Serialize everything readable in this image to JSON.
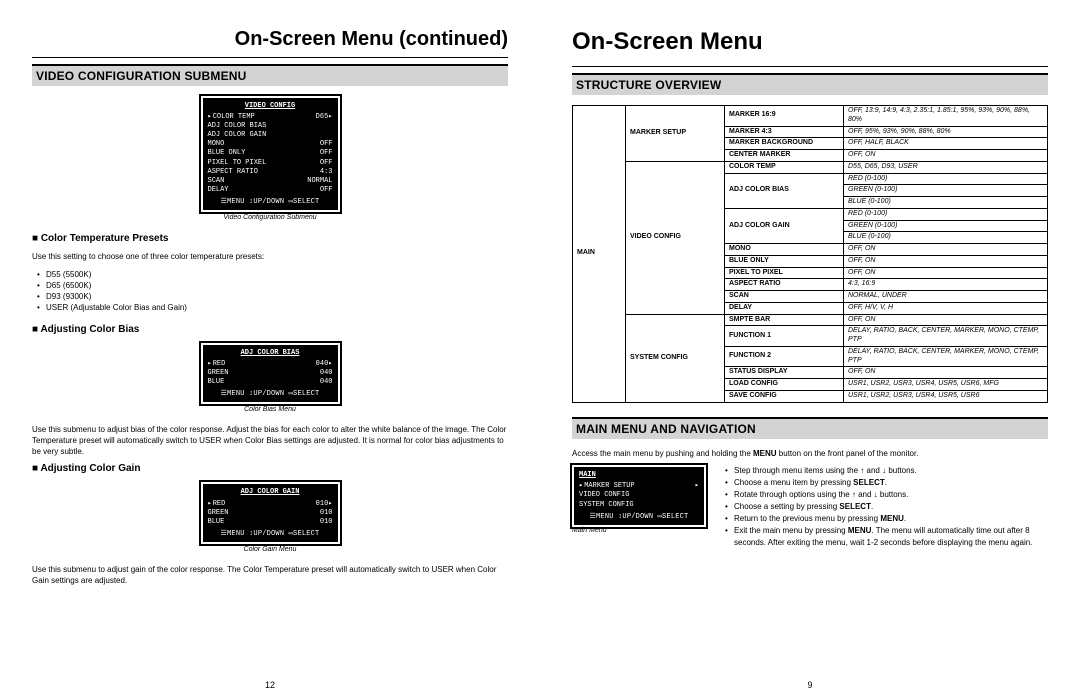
{
  "left": {
    "page_title": "On-Screen Menu (continued)",
    "section": "VIDEO CONFIGURATION SUBMENU",
    "pagenum": "12",
    "screen1": {
      "title": "VIDEO CONFIG",
      "rows": [
        [
          "COLOR TEMP",
          "D65"
        ],
        [
          "ADJ COLOR BIAS",
          ""
        ],
        [
          "ADJ COLOR GAIN",
          ""
        ],
        [
          "MONO",
          "OFF"
        ],
        [
          "BLUE ONLY",
          "OFF"
        ],
        [
          "PIXEL TO PIXEL",
          "OFF"
        ],
        [
          "ASPECT RATIO",
          "4:3"
        ],
        [
          "SCAN",
          "NORMAL"
        ],
        [
          "DELAY",
          "OFF"
        ]
      ],
      "footer": "☰MENU ↕UP/DOWN ▭SELECT",
      "caption": "Video Configuration Submenu"
    },
    "h1": "Color Temperature Presets",
    "p1": "Use this setting to choose one of three color temperature presets:",
    "list1": [
      "D55 (5500K)",
      "D65 (6500K)",
      "D93 (9300K)",
      "USER (Adjustable Color Bias and Gain)"
    ],
    "h2": "Adjusting Color Bias",
    "screen2": {
      "title": "ADJ COLOR BIAS",
      "rows": [
        [
          "RED",
          "040"
        ],
        [
          "GREEN",
          "040"
        ],
        [
          "BLUE",
          "040"
        ]
      ],
      "footer": "☰MENU ↕UP/DOWN ▭SELECT",
      "caption": "Color Bias Menu"
    },
    "p2": "Use this submenu to adjust bias of the color response. Adjust the bias for each color to alter the white balance of the image. The Color Temperature preset will automatically switch to USER when Color Bias settings are adjusted. It is normal for color bias adjustments to be very subtle.",
    "h3": "Adjusting Color Gain",
    "screen3": {
      "title": "ADJ COLOR GAIN",
      "rows": [
        [
          "RED",
          "010"
        ],
        [
          "GREEN",
          "010"
        ],
        [
          "BLUE",
          "010"
        ]
      ],
      "footer": "☰MENU ↕UP/DOWN ▭SELECT",
      "caption": "Color Gain Menu"
    },
    "p3": "Use this submenu to adjust gain of the color response. The Color Temperature preset will automatically switch to USER when Color Gain settings are adjusted."
  },
  "right": {
    "page_title": "On-Screen Menu",
    "section1": "STRUCTURE OVERVIEW",
    "pagenum": "9",
    "table": {
      "main_label": "MAIN",
      "groups": [
        {
          "name": "MARKER SETUP",
          "rows": [
            {
              "label": "MARKER 16:9",
              "vals": [
                "OFF, 13:9, 14:9, 4:3, 2.35:1, 1.85:1, 95%, 93%, 90%, 88%, 80%"
              ]
            },
            {
              "label": "MARKER 4:3",
              "vals": [
                "OFF, 95%, 93%, 90%, 88%, 80%"
              ]
            },
            {
              "label": "MARKER BACKGROUND",
              "vals": [
                "OFF, HALF, BLACK"
              ]
            },
            {
              "label": "CENTER MARKER",
              "vals": [
                "OFF, ON"
              ]
            }
          ]
        },
        {
          "name": "VIDEO CONFIG",
          "rows": [
            {
              "label": "COLOR TEMP",
              "vals": [
                "D55, D65, D93, USER"
              ]
            },
            {
              "label": "ADJ COLOR BIAS",
              "vals": [
                "RED (0-100)",
                "GREEN (0-100)",
                "BLUE (0-100)"
              ]
            },
            {
              "label": "ADJ COLOR GAIN",
              "vals": [
                "RED (0-100)",
                "GREEN (0-100)",
                "BLUE (0-100)"
              ]
            },
            {
              "label": "MONO",
              "vals": [
                "OFF, ON"
              ]
            },
            {
              "label": "BLUE ONLY",
              "vals": [
                "OFF, ON"
              ]
            },
            {
              "label": "PIXEL TO PIXEL",
              "vals": [
                "OFF, ON"
              ]
            },
            {
              "label": "ASPECT RATIO",
              "vals": [
                "4:3, 16:9"
              ]
            },
            {
              "label": "SCAN",
              "vals": [
                "NORMAL, UNDER"
              ]
            },
            {
              "label": "DELAY",
              "vals": [
                "OFF, H/V, V, H"
              ]
            }
          ]
        },
        {
          "name": "SYSTEM CONFIG",
          "rows": [
            {
              "label": "SMPTE BAR",
              "vals": [
                "OFF, ON"
              ]
            },
            {
              "label": "FUNCTION 1",
              "vals": [
                "DELAY, RATIO, BACK, CENTER, MARKER, MONO, CTEMP, PTP"
              ]
            },
            {
              "label": "FUNCTION 2",
              "vals": [
                "DELAY, RATIO, BACK, CENTER, MARKER, MONO, CTEMP, PTP"
              ]
            },
            {
              "label": "STATUS DISPLAY",
              "vals": [
                "OFF, ON"
              ]
            },
            {
              "label": "LOAD CONFIG",
              "vals": [
                "USR1, USR2, USR3, USR4, USR5, USR6, MFG"
              ]
            },
            {
              "label": "SAVE CONFIG",
              "vals": [
                "USR1, USR2, USR3, USR4, USR5, USR6"
              ]
            }
          ]
        }
      ]
    },
    "section2": "MAIN MENU AND NAVIGATION",
    "p_access_pre": "Access the main menu by pushing and holding the ",
    "p_access_bold": "MENU",
    "p_access_post": " button on the front panel of the monitor.",
    "nav_screen": {
      "title": "MAIN",
      "rows": [
        [
          "MARKER SETUP",
          "▸"
        ],
        [
          "VIDEO CONFIG",
          ""
        ],
        [
          "SYSTEM CONFIG",
          ""
        ]
      ],
      "footer": "☰MENU ↕UP/DOWN ▭SELECT",
      "caption": "Main Menu"
    },
    "nav_list": [
      "Step through menu items using the ↑ and ↓ buttons.",
      "Choose a menu item by pressing <b>SELECT</b>.",
      "Rotate through options using the ↑ and ↓ buttons.",
      "Choose a setting by pressing <b>SELECT</b>.",
      "Return to the previous menu by pressing <b>MENU</b>.",
      "Exit the main menu by pressing <b>MENU</b>. The menu will automatically time out after 8 seconds. After exiting the menu, wait 1-2 seconds before displaying the menu again."
    ]
  }
}
